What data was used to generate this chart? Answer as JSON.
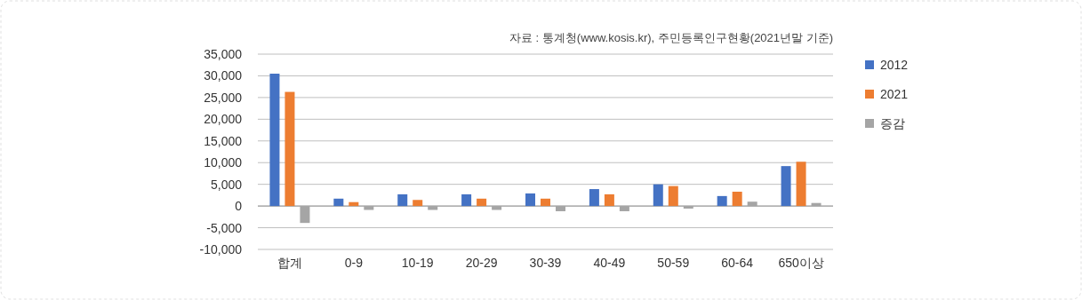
{
  "chart_data": {
    "type": "bar",
    "categories": [
      "합계",
      "0-9",
      "10-19",
      "20-29",
      "30-39",
      "40-49",
      "50-59",
      "60-64",
      "650이상"
    ],
    "series": [
      {
        "name": "2012",
        "color": "#4472c4",
        "values": [
          30500,
          1700,
          2700,
          2700,
          2900,
          3900,
          5000,
          2300,
          9200
        ]
      },
      {
        "name": "2021",
        "color": "#ed7d31",
        "values": [
          26300,
          900,
          1400,
          1700,
          1700,
          2700,
          4600,
          3300,
          10200
        ]
      },
      {
        "name": "증감",
        "color": "#a5a5a5",
        "values": [
          -3900,
          -900,
          -900,
          -900,
          -1200,
          -1200,
          -600,
          1000,
          700
        ]
      }
    ],
    "ylim": [
      -10000,
      35000
    ],
    "yticks": [
      {
        "value": -10000,
        "label": "-10,000"
      },
      {
        "value": -5000,
        "label": "-5,000"
      },
      {
        "value": 0,
        "label": "0"
      },
      {
        "value": 5000,
        "label": "5,000"
      },
      {
        "value": 10000,
        "label": "10,000"
      },
      {
        "value": 15000,
        "label": "15,000"
      },
      {
        "value": 20000,
        "label": "20,000"
      },
      {
        "value": 25000,
        "label": "25,000"
      },
      {
        "value": 30000,
        "label": "30,000"
      },
      {
        "value": 35000,
        "label": "35,000"
      }
    ],
    "grid": "y",
    "legend": "right",
    "annotations": [
      "자료 : 통계청(www.kosis.kr), 주민등록인구현황(2021년말 기준)"
    ]
  }
}
